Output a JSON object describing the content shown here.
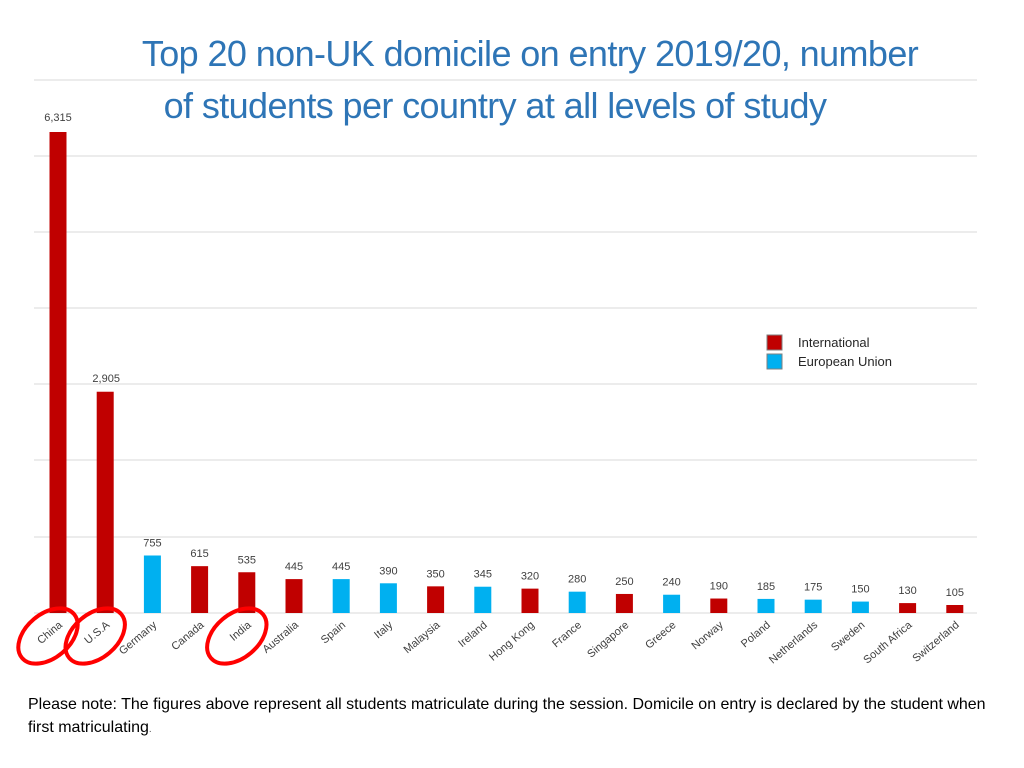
{
  "title": {
    "line1": "Top 20 non-UK domicile on entry 2019/20, number",
    "line2": "of students per country at all levels of study"
  },
  "note": {
    "text": "Please note: The figures above represent all students matriculate during the session. Domicile on entry is declared by the student when first matriculating",
    "trailing": "."
  },
  "colors": {
    "international": "#c00000",
    "european_union": "#00b0f0",
    "highlight_circle": "#ff0000",
    "title": "#2e75b6",
    "grid": "#d9d9d9"
  },
  "chart_data": {
    "type": "bar",
    "categories": [
      "China",
      "U.S.A",
      "Germany",
      "Canada",
      "India",
      "Australia",
      "Spain",
      "Italy",
      "Malaysia",
      "Ireland",
      "Hong Kong",
      "France",
      "Singapore",
      "Greece",
      "Norway",
      "Poland",
      "Netherlands",
      "Sweden",
      "South Africa",
      "Switzerland"
    ],
    "values": [
      6315,
      2905,
      755,
      615,
      535,
      445,
      445,
      390,
      350,
      345,
      320,
      280,
      250,
      240,
      190,
      185,
      175,
      150,
      130,
      105
    ],
    "value_labels": [
      "6,315",
      "2,905",
      "755",
      "615",
      "535",
      "445",
      "445",
      "390",
      "350",
      "345",
      "320",
      "280",
      "250",
      "240",
      "190",
      "185",
      "175",
      "150",
      "130",
      "105"
    ],
    "groups": [
      "International",
      "International",
      "European Union",
      "International",
      "International",
      "International",
      "European Union",
      "European Union",
      "International",
      "European Union",
      "International",
      "European Union",
      "International",
      "European Union",
      "International",
      "European Union",
      "European Union",
      "European Union",
      "International",
      "International"
    ],
    "legend": {
      "position": "right",
      "entries": [
        {
          "name": "International",
          "color": "#c00000"
        },
        {
          "name": "European Union",
          "color": "#00b0f0"
        }
      ]
    },
    "highlighted": [
      "China",
      "U.S.A",
      "India"
    ],
    "ylim": [
      0,
      6315
    ],
    "grid": true,
    "xlabel": "",
    "ylabel": ""
  }
}
